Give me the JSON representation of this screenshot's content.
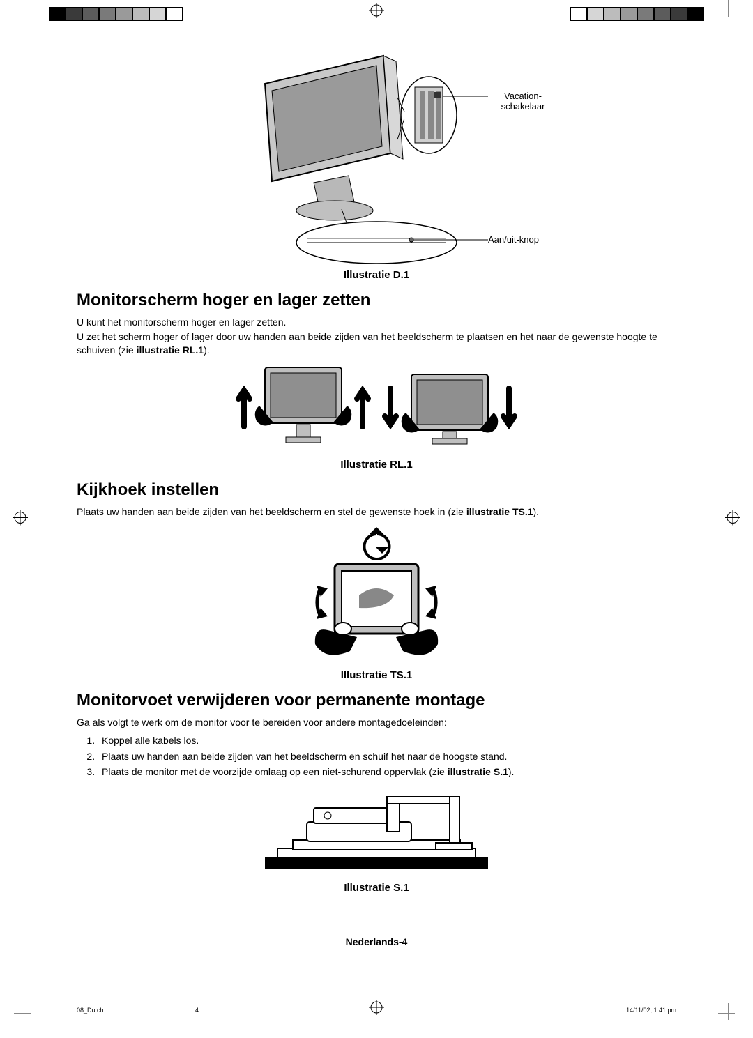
{
  "registration_colors_left": [
    "#000000",
    "#3a3a3a",
    "#5c5c5c",
    "#7a7a7a",
    "#9a9a9a",
    "#bcbcbc",
    "#d6d6d6",
    "#ffffff"
  ],
  "registration_colors_right": [
    "#ffffff",
    "#d6d6d6",
    "#bcbcbc",
    "#9a9a9a",
    "#7a7a7a",
    "#5c5c5c",
    "#3a3a3a",
    "#000000"
  ],
  "fig_d1": {
    "caption": "Illustratie D.1",
    "label_vacation": "Vacation-schakelaar",
    "label_power": "Aan/uit-knop"
  },
  "section1": {
    "heading": "Monitorscherm hoger en lager zetten",
    "p1": "U kunt het monitorscherm hoger en lager zetten.",
    "p2_a": "U zet het scherm hoger of lager door uw handen aan beide zijden van het beeldscherm te plaatsen en het naar de gewenste hoogte te schuiven (zie ",
    "p2_b": "illustratie RL.1",
    "p2_c": ")."
  },
  "fig_rl1": {
    "caption": "Illustratie RL.1"
  },
  "section2": {
    "heading": "Kijkhoek instellen",
    "p1_a": "Plaats uw handen aan beide zijden van het beeldscherm en stel de gewenste hoek in (zie ",
    "p1_b": "illustratie TS.1",
    "p1_c": ")."
  },
  "fig_ts1": {
    "caption": "Illustratie TS.1"
  },
  "section3": {
    "heading": "Monitorvoet verwijderen voor permanente montage",
    "intro": "Ga als volgt te werk om de monitor voor te bereiden voor andere montagedoeleinden:",
    "step1": "Koppel alle kabels los.",
    "step2": "Plaats uw handen aan beide zijden van het beeldscherm en schuif het naar de hoogste stand.",
    "step3_a": "Plaats de monitor met de voorzijde omlaag op een niet-schurend oppervlak (zie ",
    "step3_b": "illustratie S.1",
    "step3_c": ")."
  },
  "fig_s1": {
    "caption": "Illustratie S.1"
  },
  "footer": {
    "center": "Nederlands-4",
    "left": "08_Dutch",
    "pagenum": "4",
    "right": "14/11/02, 1:41 pm"
  }
}
